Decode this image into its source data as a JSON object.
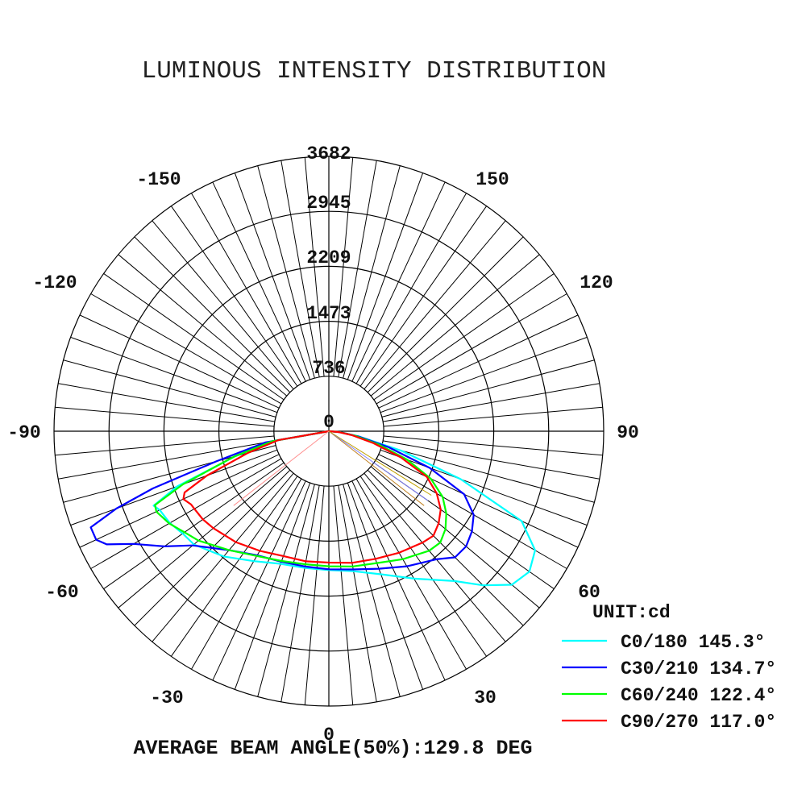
{
  "chart_data": {
    "type": "polar",
    "title": "LUMINOUS INTENSITY DISTRIBUTION",
    "unit_label": "UNIT:cd",
    "footer": "AVERAGE BEAM ANGLE(50%):129.8 DEG",
    "radial_ticks": [
      "0",
      "736",
      "1473",
      "2209",
      "2945",
      "3682"
    ],
    "r_max": 3682,
    "angle_labels": [
      {
        "deg": 0,
        "text": "0"
      },
      {
        "deg": 30,
        "text": "30"
      },
      {
        "deg": 60,
        "text": "60"
      },
      {
        "deg": 90,
        "text": "90"
      },
      {
        "deg": 120,
        "text": "120"
      },
      {
        "deg": 150,
        "text": "150"
      },
      {
        "deg": -30,
        "text": "-30"
      },
      {
        "deg": -60,
        "text": "-60"
      },
      {
        "deg": -90,
        "text": "-90"
      },
      {
        "deg": -120,
        "text": "-120"
      },
      {
        "deg": -150,
        "text": "-150"
      },
      {
        "deg": 180,
        "text": "3682"
      }
    ],
    "series": [
      {
        "name": "C0/180 145.3°",
        "color": "#00ffff",
        "points": [
          [
            -80,
            780
          ],
          [
            -75,
            1300
          ],
          [
            -70,
            2160
          ],
          [
            -67,
            2550
          ],
          [
            -65,
            2500
          ],
          [
            -60,
            2460
          ],
          [
            -55,
            2390
          ],
          [
            -50,
            2360
          ],
          [
            -40,
            2190
          ],
          [
            -30,
            2010
          ],
          [
            -20,
            1890
          ],
          [
            -10,
            1860
          ],
          [
            0,
            1860
          ],
          [
            10,
            1905
          ],
          [
            20,
            2040
          ],
          [
            30,
            2280
          ],
          [
            40,
            2620
          ],
          [
            45,
            2920
          ],
          [
            50,
            3200
          ],
          [
            55,
            3280
          ],
          [
            60,
            3190
          ],
          [
            65,
            2850
          ],
          [
            70,
            1880
          ],
          [
            75,
            1000
          ],
          [
            80,
            410
          ],
          [
            85,
            150
          ]
        ]
      },
      {
        "name": "C30/210 134.7°",
        "color": "#0000ff",
        "points": [
          [
            -80,
            860
          ],
          [
            -75,
            1560
          ],
          [
            -72,
            2480
          ],
          [
            -70,
            3030
          ],
          [
            -68,
            3440
          ],
          [
            -65,
            3440
          ],
          [
            -63,
            3340
          ],
          [
            -60,
            3020
          ],
          [
            -55,
            2690
          ],
          [
            -50,
            2380
          ],
          [
            -40,
            2080
          ],
          [
            -30,
            1920
          ],
          [
            -20,
            1860
          ],
          [
            -10,
            1840
          ],
          [
            0,
            1850
          ],
          [
            10,
            1880
          ],
          [
            20,
            1960
          ],
          [
            30,
            2090
          ],
          [
            40,
            2240
          ],
          [
            45,
            2390
          ],
          [
            50,
            2400
          ],
          [
            55,
            2340
          ],
          [
            60,
            2240
          ],
          [
            65,
            2000
          ],
          [
            70,
            1440
          ],
          [
            75,
            830
          ],
          [
            80,
            400
          ],
          [
            85,
            160
          ]
        ]
      },
      {
        "name": "C60/240 122.4°",
        "color": "#00ff00",
        "points": [
          [
            -80,
            770
          ],
          [
            -75,
            1310
          ],
          [
            -70,
            2080
          ],
          [
            -67,
            2530
          ],
          [
            -65,
            2550
          ],
          [
            -60,
            2470
          ],
          [
            -55,
            2360
          ],
          [
            -50,
            2280
          ],
          [
            -40,
            2080
          ],
          [
            -30,
            1930
          ],
          [
            -20,
            1850
          ],
          [
            -10,
            1810
          ],
          [
            0,
            1810
          ],
          [
            10,
            1840
          ],
          [
            20,
            1880
          ],
          [
            30,
            1980
          ],
          [
            40,
            2090
          ],
          [
            45,
            2110
          ],
          [
            50,
            2040
          ],
          [
            55,
            1920
          ],
          [
            60,
            1760
          ],
          [
            65,
            1510
          ],
          [
            70,
            1120
          ],
          [
            75,
            700
          ],
          [
            80,
            370
          ],
          [
            85,
            150
          ]
        ]
      },
      {
        "name": "C90/270 117.0°",
        "color": "#ff0000",
        "points": [
          [
            -80,
            690
          ],
          [
            -75,
            1120
          ],
          [
            -70,
            1740
          ],
          [
            -67,
            2100
          ],
          [
            -65,
            2150
          ],
          [
            -62,
            2090
          ],
          [
            -60,
            2080
          ],
          [
            -55,
            2060
          ],
          [
            -50,
            2020
          ],
          [
            -40,
            1940
          ],
          [
            -30,
            1850
          ],
          [
            -20,
            1780
          ],
          [
            -10,
            1770
          ],
          [
            0,
            1760
          ],
          [
            10,
            1790
          ],
          [
            20,
            1820
          ],
          [
            30,
            1880
          ],
          [
            40,
            1950
          ],
          [
            45,
            1980
          ],
          [
            50,
            1920
          ],
          [
            55,
            1830
          ],
          [
            60,
            1670
          ],
          [
            65,
            1450
          ],
          [
            70,
            1030
          ],
          [
            75,
            620
          ],
          [
            80,
            320
          ],
          [
            85,
            130
          ]
        ]
      }
    ]
  }
}
